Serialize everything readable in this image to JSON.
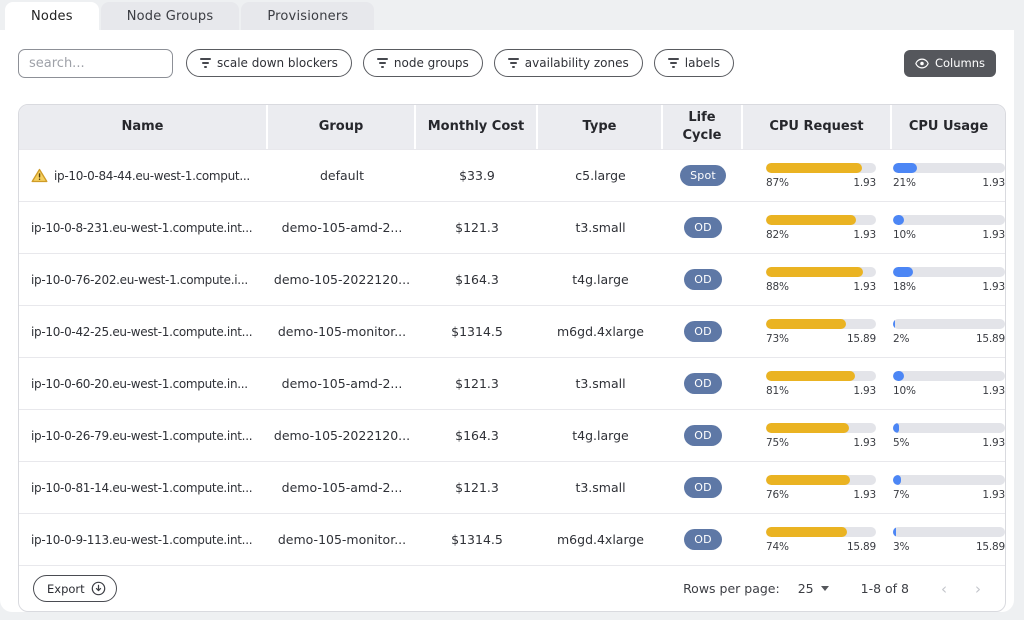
{
  "tabs": [
    {
      "label": "Nodes",
      "active": true
    },
    {
      "label": "Node Groups",
      "active": false
    },
    {
      "label": "Provisioners",
      "active": false
    }
  ],
  "toolbar": {
    "search_placeholder": "search...",
    "filters": [
      {
        "label": "scale down blockers"
      },
      {
        "label": "node groups"
      },
      {
        "label": "availability zones"
      },
      {
        "label": "labels"
      }
    ],
    "columns_label": "Columns"
  },
  "table": {
    "columns": [
      "Name",
      "Group",
      "Monthly Cost",
      "Type",
      "Life Cycle",
      "CPU Request",
      "CPU Usage"
    ],
    "rows": [
      {
        "warning": true,
        "name": "ip-10-0-84-44.eu-west-1.comput...",
        "group": "default",
        "cost": "$33.9",
        "type": "c5.large",
        "lifecycle": "Spot",
        "cpu_request": {
          "pct": "87%",
          "total": "1.93"
        },
        "cpu_usage": {
          "pct": "21%",
          "total": "1.93"
        }
      },
      {
        "warning": false,
        "name": "ip-10-0-8-231.eu-west-1.compute.int...",
        "group": "demo-105-amd-2...",
        "cost": "$121.3",
        "type": "t3.small",
        "lifecycle": "OD",
        "cpu_request": {
          "pct": "82%",
          "total": "1.93"
        },
        "cpu_usage": {
          "pct": "10%",
          "total": "1.93"
        }
      },
      {
        "warning": false,
        "name": "ip-10-0-76-202.eu-west-1.compute.i...",
        "group": "demo-105-2022120...",
        "cost": "$164.3",
        "type": "t4g.large",
        "lifecycle": "OD",
        "cpu_request": {
          "pct": "88%",
          "total": "1.93"
        },
        "cpu_usage": {
          "pct": "18%",
          "total": "1.93"
        }
      },
      {
        "warning": false,
        "name": "ip-10-0-42-25.eu-west-1.compute.int...",
        "group": "demo-105-monitor...",
        "cost": "$1314.5",
        "type": "m6gd.4xlarge",
        "lifecycle": "OD",
        "cpu_request": {
          "pct": "73%",
          "total": "15.89"
        },
        "cpu_usage": {
          "pct": "2%",
          "total": "15.89"
        }
      },
      {
        "warning": false,
        "name": "ip-10-0-60-20.eu-west-1.compute.in...",
        "group": "demo-105-amd-2...",
        "cost": "$121.3",
        "type": "t3.small",
        "lifecycle": "OD",
        "cpu_request": {
          "pct": "81%",
          "total": "1.93"
        },
        "cpu_usage": {
          "pct": "10%",
          "total": "1.93"
        }
      },
      {
        "warning": false,
        "name": "ip-10-0-26-79.eu-west-1.compute.int...",
        "group": "demo-105-2022120...",
        "cost": "$164.3",
        "type": "t4g.large",
        "lifecycle": "OD",
        "cpu_request": {
          "pct": "75%",
          "total": "1.93"
        },
        "cpu_usage": {
          "pct": "5%",
          "total": "1.93"
        }
      },
      {
        "warning": false,
        "name": "ip-10-0-81-14.eu-west-1.compute.int...",
        "group": "demo-105-amd-2...",
        "cost": "$121.3",
        "type": "t3.small",
        "lifecycle": "OD",
        "cpu_request": {
          "pct": "76%",
          "total": "1.93"
        },
        "cpu_usage": {
          "pct": "7%",
          "total": "1.93"
        }
      },
      {
        "warning": false,
        "name": "ip-10-0-9-113.eu-west-1.compute.int...",
        "group": "demo-105-monitor...",
        "cost": "$1314.5",
        "type": "m6gd.4xlarge",
        "lifecycle": "OD",
        "cpu_request": {
          "pct": "74%",
          "total": "15.89"
        },
        "cpu_usage": {
          "pct": "3%",
          "total": "15.89"
        }
      }
    ]
  },
  "footer": {
    "export_label": "Export",
    "rows_per_page_label": "Rows per page:",
    "rows_per_page_value": "25",
    "range_label": "1-8 of 8",
    "prev_label": "‹",
    "next_label": "›"
  },
  "colors": {
    "accent_yellow": "#EAB322",
    "accent_blue": "#4C86F5",
    "badge_blue": "#5E78A6",
    "track_gray": "#E3E4E9",
    "dark_button": "#55575C",
    "warning_yellow": "#E9B63C"
  }
}
